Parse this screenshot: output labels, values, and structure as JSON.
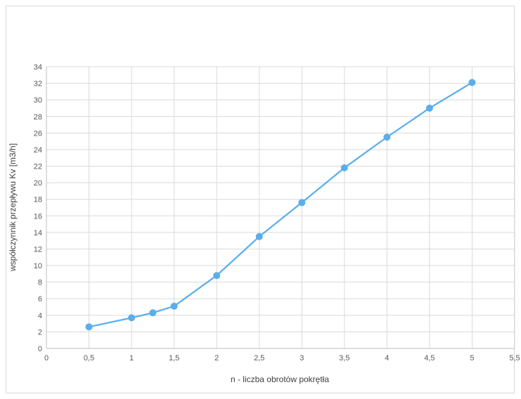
{
  "chart_data": {
    "type": "scatter",
    "title": "",
    "xlabel": "n - liczba obrotów pokrętła",
    "ylabel": "współczynnik przepływu Kv [m3/h]",
    "xlim": [
      0,
      5.5
    ],
    "ylim": [
      0,
      34
    ],
    "x_ticks": [
      0,
      0.5,
      1,
      1.5,
      2,
      2.5,
      3,
      3.5,
      4,
      4.5,
      5,
      5.5
    ],
    "x_tick_labels": [
      "0",
      "0,5",
      "1",
      "1,5",
      "2",
      "2,5",
      "3",
      "3,5",
      "4",
      "4,5",
      "5",
      "5,5"
    ],
    "y_ticks": [
      0,
      2,
      4,
      6,
      8,
      10,
      12,
      14,
      16,
      18,
      20,
      22,
      24,
      26,
      28,
      30,
      32,
      34
    ],
    "y_tick_labels": [
      "0",
      "2",
      "4",
      "6",
      "8",
      "10",
      "12",
      "14",
      "16",
      "18",
      "20",
      "22",
      "24",
      "26",
      "28",
      "30",
      "32",
      "34"
    ],
    "grid": true,
    "legend": "none",
    "series": [
      {
        "color": "#5aaeed",
        "marker": "circle",
        "line": true,
        "x": [
          0.5,
          1,
          1.25,
          1.5,
          2,
          2.5,
          3,
          3.5,
          4,
          4.5,
          5
        ],
        "y": [
          2.6,
          3.7,
          4.3,
          5.1,
          8.8,
          13.5,
          17.6,
          21.8,
          25.5,
          29.0,
          32.1
        ]
      }
    ]
  }
}
